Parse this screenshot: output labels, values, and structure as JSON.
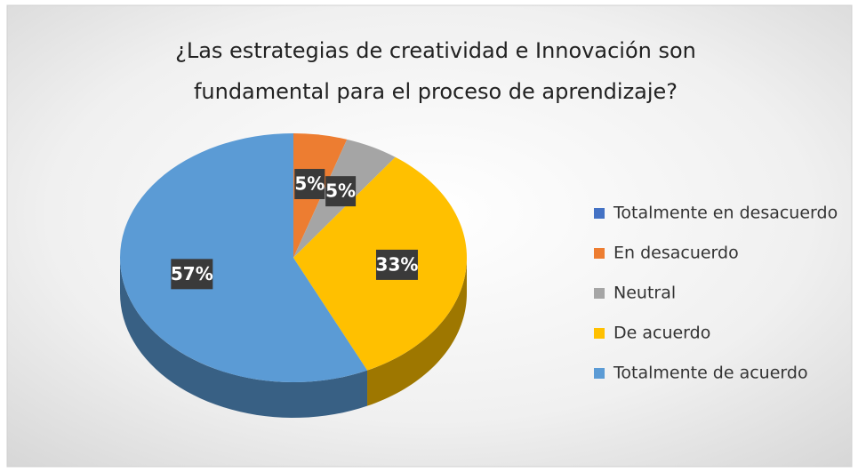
{
  "chart_data": {
    "type": "pie",
    "title": "¿Las estrategias de creatividad e Innovación son fundamental para el proceso de aprendizaje?",
    "categories": [
      "Totalmente en desacuerdo",
      "En desacuerdo",
      "Neutral",
      "De acuerdo",
      "Totalmente de acuerdo"
    ],
    "values": [
      0,
      5,
      5,
      33,
      57
    ],
    "value_labels": [
      null,
      "5%",
      "5%",
      "33%",
      "57%"
    ],
    "colors": [
      "#4472c4",
      "#ed7d31",
      "#a5a5a5",
      "#ffc000",
      "#5b9bd5"
    ],
    "legend": "right"
  }
}
